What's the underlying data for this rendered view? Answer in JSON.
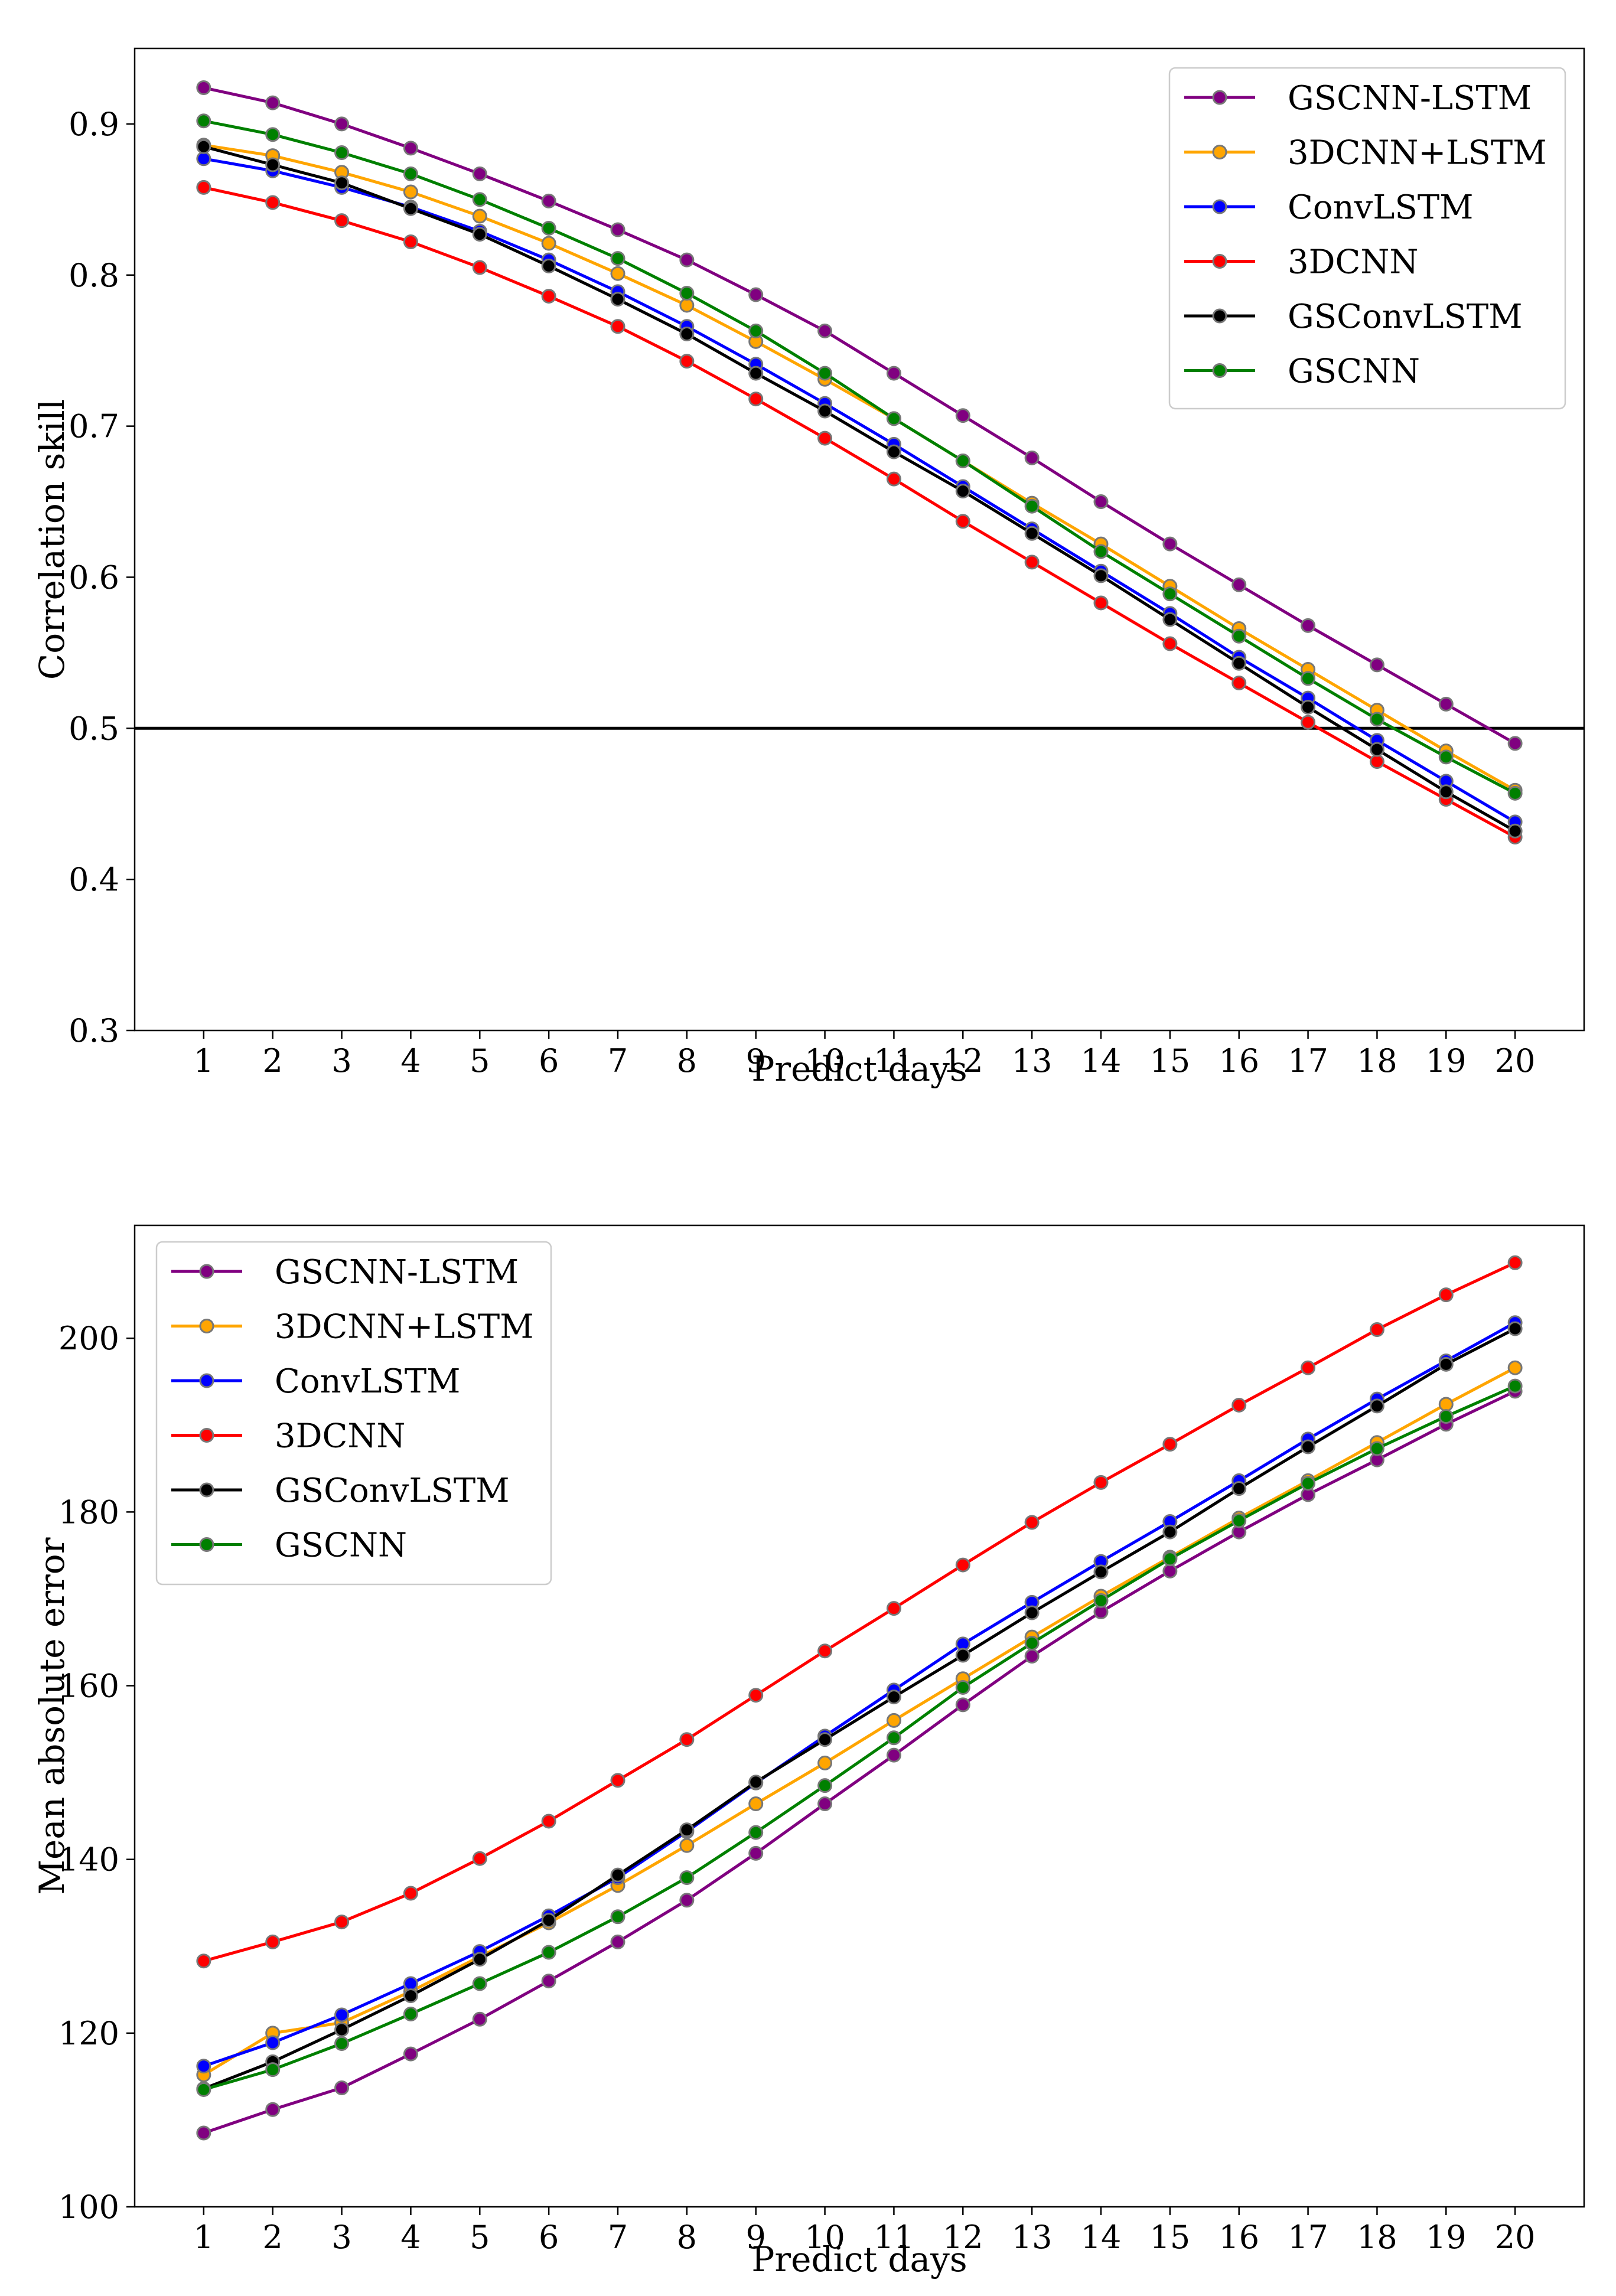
{
  "chart_data": [
    {
      "type": "line",
      "xlabel": "Predict days",
      "ylabel": "Correlation skill",
      "x": [
        1,
        2,
        3,
        4,
        5,
        6,
        7,
        8,
        9,
        10,
        11,
        12,
        13,
        14,
        15,
        16,
        17,
        18,
        19,
        20
      ],
      "xticks": [
        "1",
        "2",
        "3",
        "4",
        "5",
        "6",
        "7",
        "8",
        "9",
        "10",
        "11",
        "12",
        "13",
        "14",
        "15",
        "16",
        "17",
        "18",
        "19",
        "20"
      ],
      "ylim": [
        0.3,
        0.95
      ],
      "yticks": [
        0.3,
        0.4,
        0.5,
        0.6,
        0.7,
        0.8,
        0.9
      ],
      "ytick_labels": [
        "0.3",
        "0.4",
        "0.5",
        "0.6",
        "0.7",
        "0.8",
        "0.9"
      ],
      "reference_line": 0.5,
      "legend_position": "top-right",
      "series": [
        {
          "name": "GSCNN-LSTM",
          "color": "#800080",
          "values": [
            0.924,
            0.914,
            0.9,
            0.884,
            0.867,
            0.849,
            0.83,
            0.81,
            0.787,
            0.763,
            0.735,
            0.707,
            0.679,
            0.65,
            0.622,
            0.595,
            0.568,
            0.542,
            0.516,
            0.49
          ]
        },
        {
          "name": "3DCNN+LSTM",
          "color": "#FFA500",
          "values": [
            0.886,
            0.879,
            0.868,
            0.855,
            0.839,
            0.821,
            0.801,
            0.78,
            0.756,
            0.731,
            0.705,
            0.677,
            0.649,
            0.622,
            0.594,
            0.566,
            0.539,
            0.512,
            0.485,
            0.459
          ]
        },
        {
          "name": "ConvLSTM",
          "color": "#0000FF",
          "values": [
            0.877,
            0.869,
            0.858,
            0.845,
            0.829,
            0.81,
            0.789,
            0.766,
            0.741,
            0.715,
            0.688,
            0.66,
            0.632,
            0.604,
            0.576,
            0.547,
            0.52,
            0.492,
            0.465,
            0.438
          ]
        },
        {
          "name": "3DCNN",
          "color": "#FF0000",
          "values": [
            0.858,
            0.848,
            0.836,
            0.822,
            0.805,
            0.786,
            0.766,
            0.743,
            0.718,
            0.692,
            0.665,
            0.637,
            0.61,
            0.583,
            0.556,
            0.53,
            0.504,
            0.478,
            0.453,
            0.428
          ]
        },
        {
          "name": "GSConvLSTM",
          "color": "#000000",
          "values": [
            0.885,
            0.873,
            0.861,
            0.844,
            0.827,
            0.806,
            0.784,
            0.761,
            0.735,
            0.71,
            0.683,
            0.657,
            0.629,
            0.601,
            0.572,
            0.543,
            0.514,
            0.486,
            0.458,
            0.432
          ]
        },
        {
          "name": "GSCNN",
          "color": "#008000",
          "values": [
            0.902,
            0.893,
            0.881,
            0.867,
            0.85,
            0.831,
            0.811,
            0.788,
            0.763,
            0.735,
            0.705,
            0.677,
            0.647,
            0.617,
            0.589,
            0.561,
            0.533,
            0.506,
            0.481,
            0.457
          ]
        }
      ]
    },
    {
      "type": "line",
      "xlabel": "Predict days",
      "ylabel": "Mean absolute error",
      "x": [
        1,
        2,
        3,
        4,
        5,
        6,
        7,
        8,
        9,
        10,
        11,
        12,
        13,
        14,
        15,
        16,
        17,
        18,
        19,
        20
      ],
      "xticks": [
        "1",
        "2",
        "3",
        "4",
        "5",
        "6",
        "7",
        "8",
        "9",
        "10",
        "11",
        "12",
        "13",
        "14",
        "15",
        "16",
        "17",
        "18",
        "19",
        "20"
      ],
      "ylim": [
        100,
        213
      ],
      "yticks": [
        100,
        120,
        140,
        160,
        180,
        200
      ],
      "ytick_labels": [
        "100",
        "120",
        "140",
        "160",
        "180",
        "200"
      ],
      "legend_position": "top-left",
      "series": [
        {
          "name": "GSCNN-LSTM",
          "color": "#800080",
          "values": [
            108.5,
            111.2,
            113.7,
            117.6,
            121.6,
            126.0,
            130.5,
            135.3,
            140.7,
            146.4,
            152.0,
            157.8,
            163.4,
            168.5,
            173.2,
            177.7,
            182.0,
            186.0,
            190.1,
            193.9
          ]
        },
        {
          "name": "3DCNN+LSTM",
          "color": "#FFA500",
          "values": [
            115.2,
            120.0,
            121.2,
            124.8,
            128.8,
            132.7,
            137.0,
            141.6,
            146.4,
            151.1,
            156.0,
            160.8,
            165.6,
            170.3,
            174.8,
            179.3,
            183.6,
            188.0,
            192.4,
            196.6
          ]
        },
        {
          "name": "ConvLSTM",
          "color": "#0000FF",
          "values": [
            116.2,
            118.9,
            122.1,
            125.7,
            129.4,
            133.5,
            137.9,
            143.2,
            148.8,
            154.2,
            159.5,
            164.8,
            169.6,
            174.3,
            178.9,
            183.6,
            188.4,
            193.0,
            197.4,
            201.8
          ]
        },
        {
          "name": "3DCNN",
          "color": "#FF0000",
          "values": [
            128.3,
            130.5,
            132.8,
            136.1,
            140.1,
            144.4,
            149.1,
            153.8,
            158.9,
            164.0,
            168.9,
            173.9,
            178.8,
            183.4,
            187.8,
            192.3,
            196.6,
            201.0,
            205.0,
            208.7
          ]
        },
        {
          "name": "GSConvLSTM",
          "color": "#000000",
          "values": [
            113.6,
            116.7,
            120.4,
            124.3,
            128.5,
            133.0,
            138.2,
            143.4,
            148.9,
            153.8,
            158.7,
            163.5,
            168.4,
            173.1,
            177.7,
            182.7,
            187.5,
            192.2,
            197.0,
            201.1
          ]
        },
        {
          "name": "GSCNN",
          "color": "#008000",
          "values": [
            113.5,
            115.8,
            118.8,
            122.2,
            125.7,
            129.3,
            133.4,
            137.9,
            143.1,
            148.5,
            154.0,
            159.8,
            164.9,
            169.8,
            174.6,
            179.0,
            183.3,
            187.3,
            191.0,
            194.5
          ]
        }
      ]
    }
  ]
}
